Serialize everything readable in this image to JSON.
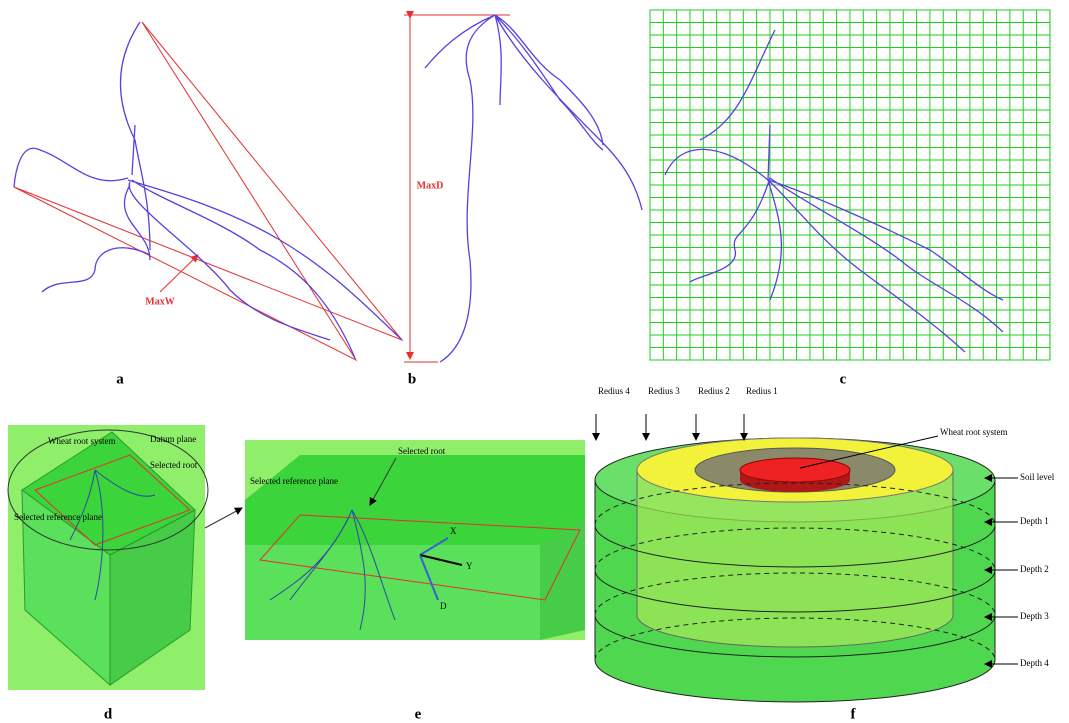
{
  "panels": [
    {
      "label": "a",
      "annotations": [
        "MaxW"
      ]
    },
    {
      "label": "b",
      "annotations": [
        "MaxD"
      ]
    },
    {
      "label": "c"
    },
    {
      "label": "d",
      "annotations": [
        "Wheat root system",
        "Datum plane",
        "Selected root",
        "Selected reference plane"
      ]
    },
    {
      "label": "e",
      "annotations": [
        "Selected root",
        "Selected reference plane",
        "X",
        "Y",
        "D"
      ]
    },
    {
      "label": "f",
      "annotations": [
        "Redius 4",
        "Redius 3",
        "Redius 2",
        "Redius 1",
        "Wheat root system",
        "Soil level",
        "Depth 1",
        "Depth 2",
        "Depth 3",
        "Depth 4"
      ]
    }
  ]
}
